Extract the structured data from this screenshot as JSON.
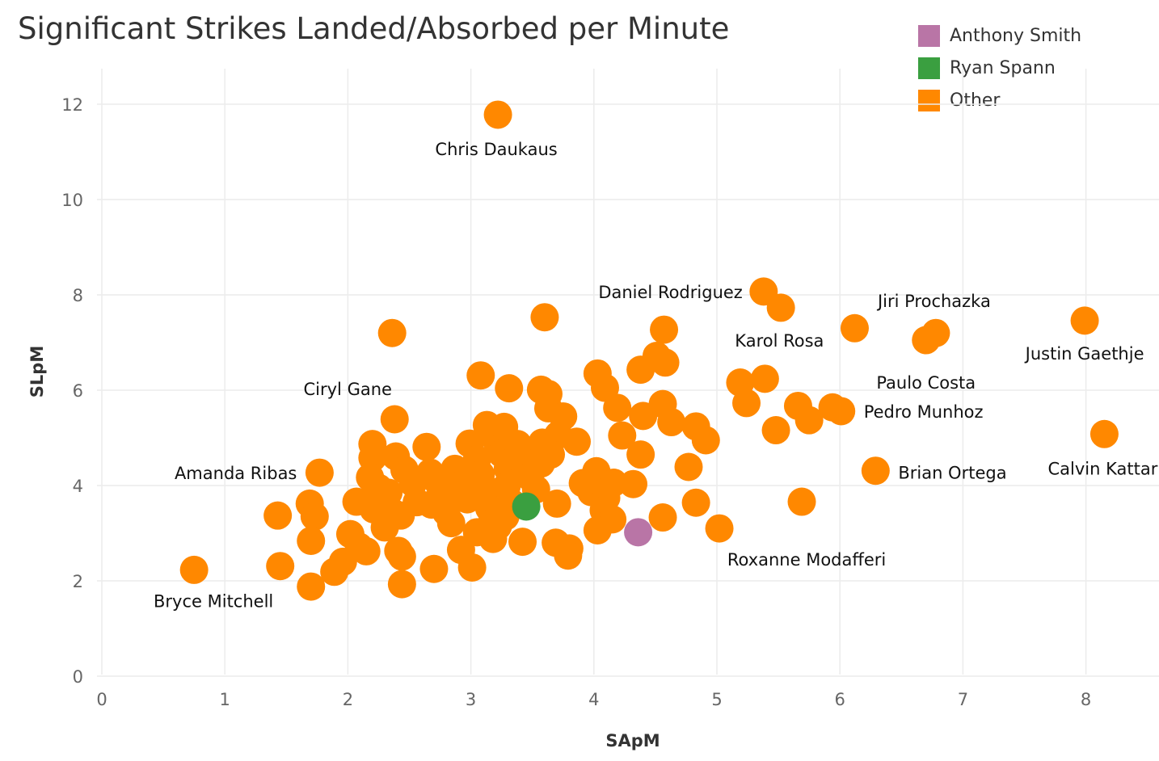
{
  "chart_data": {
    "type": "scatter",
    "title": "Significant Strikes Landed/Absorbed per Minute",
    "xlabel": "SApM",
    "ylabel": "SLpM",
    "xlim": [
      -0.05,
      8.6
    ],
    "ylim": [
      -0.3,
      12.6
    ],
    "x_ticks": [
      0,
      1,
      2,
      3,
      4,
      5,
      6,
      7,
      8
    ],
    "y_ticks": [
      0,
      2,
      4,
      6,
      8,
      10,
      12
    ],
    "grid": true,
    "legend_position": "top-right",
    "legend": [
      {
        "name": "Anthony Smith",
        "color": "#b975a6"
      },
      {
        "name": "Ryan Spann",
        "color": "#3a9f40"
      },
      {
        "name": "Other",
        "color": "#ff8800"
      }
    ],
    "series": [
      {
        "name": "Other",
        "color": "#ff8800",
        "points": [
          {
            "x": 3.22,
            "y": 11.78,
            "label": "Chris Daukaus"
          },
          {
            "x": 5.38,
            "y": 8.07,
            "label": "Daniel Rodriguez"
          },
          {
            "x": 5.52,
            "y": 7.73
          },
          {
            "x": 6.78,
            "y": 7.2,
            "label": "Jiri Prochazka"
          },
          {
            "x": 6.12,
            "y": 7.3
          },
          {
            "x": 6.7,
            "y": 7.05,
            "label": "Paulo Costa"
          },
          {
            "x": 7.99,
            "y": 7.46,
            "label": "Justin Gaethje"
          },
          {
            "x": 8.15,
            "y": 5.08,
            "label": "Calvin Kattar"
          },
          {
            "x": 4.57,
            "y": 7.27
          },
          {
            "x": 5.39,
            "y": 6.24,
            "label": "Karol Rosa"
          },
          {
            "x": 6.01,
            "y": 5.56,
            "label": "Pedro Munhoz"
          },
          {
            "x": 6.29,
            "y": 4.31,
            "label": "Brian Ortega"
          },
          {
            "x": 5.02,
            "y": 3.1,
            "label": "Roxanne Modafferi"
          },
          {
            "x": 2.38,
            "y": 5.39,
            "label": "Ciryl Gane"
          },
          {
            "x": 1.77,
            "y": 4.27,
            "label": "Amanda Ribas"
          },
          {
            "x": 0.75,
            "y": 2.23,
            "label": "Bryce Mitchell"
          },
          {
            "x": 2.36,
            "y": 7.2
          },
          {
            "x": 3.6,
            "y": 7.53
          },
          {
            "x": 3.08,
            "y": 6.31
          },
          {
            "x": 3.31,
            "y": 6.04
          },
          {
            "x": 3.57,
            "y": 6.01
          },
          {
            "x": 3.63,
            "y": 5.92
          },
          {
            "x": 3.63,
            "y": 5.62
          },
          {
            "x": 4.03,
            "y": 6.35
          },
          {
            "x": 4.09,
            "y": 6.05
          },
          {
            "x": 4.19,
            "y": 5.63
          },
          {
            "x": 4.38,
            "y": 6.43
          },
          {
            "x": 4.51,
            "y": 6.72
          },
          {
            "x": 4.58,
            "y": 6.58
          },
          {
            "x": 4.56,
            "y": 5.71
          },
          {
            "x": 4.63,
            "y": 5.33
          },
          {
            "x": 4.4,
            "y": 5.46
          },
          {
            "x": 4.83,
            "y": 5.24
          },
          {
            "x": 4.91,
            "y": 4.95
          },
          {
            "x": 5.19,
            "y": 6.16
          },
          {
            "x": 5.24,
            "y": 5.73
          },
          {
            "x": 5.48,
            "y": 5.16
          },
          {
            "x": 5.66,
            "y": 5.67
          },
          {
            "x": 5.75,
            "y": 5.37
          },
          {
            "x": 5.94,
            "y": 5.64
          },
          {
            "x": 5.69,
            "y": 3.66
          },
          {
            "x": 3.75,
            "y": 5.45
          },
          {
            "x": 3.71,
            "y": 5.06
          },
          {
            "x": 3.86,
            "y": 4.92
          },
          {
            "x": 3.58,
            "y": 4.9
          },
          {
            "x": 3.65,
            "y": 4.65
          },
          {
            "x": 4.23,
            "y": 5.05
          },
          {
            "x": 4.38,
            "y": 4.65
          },
          {
            "x": 4.32,
            "y": 4.03
          },
          {
            "x": 4.77,
            "y": 4.39
          },
          {
            "x": 4.83,
            "y": 3.64
          },
          {
            "x": 4.56,
            "y": 3.33
          },
          {
            "x": 4.02,
            "y": 4.3
          },
          {
            "x": 3.91,
            "y": 4.05
          },
          {
            "x": 3.98,
            "y": 3.86
          },
          {
            "x": 4.1,
            "y": 3.74
          },
          {
            "x": 4.16,
            "y": 4.06
          },
          {
            "x": 4.08,
            "y": 3.48
          },
          {
            "x": 4.15,
            "y": 3.29
          },
          {
            "x": 4.03,
            "y": 3.06
          },
          {
            "x": 3.7,
            "y": 3.62
          },
          {
            "x": 3.69,
            "y": 2.8
          },
          {
            "x": 3.8,
            "y": 2.68
          },
          {
            "x": 3.79,
            "y": 2.53
          },
          {
            "x": 3.42,
            "y": 2.82
          },
          {
            "x": 3.18,
            "y": 2.88
          },
          {
            "x": 2.92,
            "y": 2.65
          },
          {
            "x": 3.01,
            "y": 2.28
          },
          {
            "x": 2.7,
            "y": 2.25
          },
          {
            "x": 2.44,
            "y": 1.93
          },
          {
            "x": 2.44,
            "y": 2.51
          },
          {
            "x": 2.41,
            "y": 2.63
          },
          {
            "x": 1.7,
            "y": 1.88
          },
          {
            "x": 1.89,
            "y": 2.19
          },
          {
            "x": 1.96,
            "y": 2.4
          },
          {
            "x": 1.45,
            "y": 2.31
          },
          {
            "x": 1.43,
            "y": 3.37
          },
          {
            "x": 1.69,
            "y": 3.62
          },
          {
            "x": 1.73,
            "y": 3.35
          },
          {
            "x": 1.7,
            "y": 2.84
          },
          {
            "x": 2.02,
            "y": 2.98
          },
          {
            "x": 2.09,
            "y": 2.72
          },
          {
            "x": 2.15,
            "y": 2.62
          },
          {
            "x": 2.07,
            "y": 3.66
          },
          {
            "x": 2.2,
            "y": 4.87
          },
          {
            "x": 2.2,
            "y": 4.58
          },
          {
            "x": 2.18,
            "y": 4.17
          },
          {
            "x": 2.25,
            "y": 3.95
          },
          {
            "x": 2.33,
            "y": 3.85
          },
          {
            "x": 2.21,
            "y": 3.5
          },
          {
            "x": 2.38,
            "y": 3.41
          },
          {
            "x": 2.43,
            "y": 3.37
          },
          {
            "x": 2.3,
            "y": 3.12
          },
          {
            "x": 2.39,
            "y": 4.61
          },
          {
            "x": 2.46,
            "y": 4.33
          },
          {
            "x": 2.53,
            "y": 4.05
          },
          {
            "x": 2.56,
            "y": 3.65
          },
          {
            "x": 2.64,
            "y": 4.81
          },
          {
            "x": 2.67,
            "y": 4.27
          },
          {
            "x": 2.74,
            "y": 4.04
          },
          {
            "x": 2.78,
            "y": 3.78
          },
          {
            "x": 2.8,
            "y": 3.44
          },
          {
            "x": 2.84,
            "y": 3.21
          },
          {
            "x": 2.68,
            "y": 3.6
          },
          {
            "x": 2.87,
            "y": 4.35
          },
          {
            "x": 2.92,
            "y": 4.02
          },
          {
            "x": 2.97,
            "y": 3.71
          },
          {
            "x": 2.99,
            "y": 4.88
          },
          {
            "x": 3.05,
            "y": 4.55
          },
          {
            "x": 3.08,
            "y": 4.23
          },
          {
            "x": 3.12,
            "y": 3.93
          },
          {
            "x": 3.15,
            "y": 3.52
          },
          {
            "x": 3.17,
            "y": 3.22
          },
          {
            "x": 3.13,
            "y": 5.27
          },
          {
            "x": 3.2,
            "y": 4.98
          },
          {
            "x": 3.27,
            "y": 5.23
          },
          {
            "x": 3.25,
            "y": 4.67
          },
          {
            "x": 3.3,
            "y": 4.35
          },
          {
            "x": 3.29,
            "y": 3.98
          },
          {
            "x": 3.33,
            "y": 3.64
          },
          {
            "x": 3.28,
            "y": 3.35
          },
          {
            "x": 3.38,
            "y": 4.87
          },
          {
            "x": 3.42,
            "y": 4.51
          },
          {
            "x": 3.48,
            "y": 4.18
          },
          {
            "x": 3.53,
            "y": 3.92
          },
          {
            "x": 3.57,
            "y": 4.46
          },
          {
            "x": 3.05,
            "y": 3.02
          },
          {
            "x": 3.22,
            "y": 3.15
          }
        ]
      },
      {
        "name": "Ryan Spann",
        "color": "#3a9f40",
        "points": [
          {
            "x": 3.45,
            "y": 3.56
          }
        ]
      },
      {
        "name": "Anthony Smith",
        "color": "#b975a6",
        "points": [
          {
            "x": 4.36,
            "y": 3.02
          }
        ]
      }
    ]
  }
}
